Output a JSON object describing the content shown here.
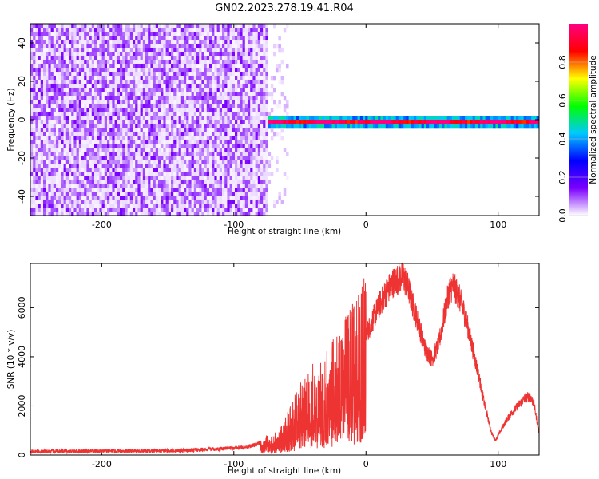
{
  "title": "GN02.2023.278.19.41.R04",
  "chart_data": [
    {
      "type": "heatmap",
      "title": "GN02.2023.278.19.41.R04",
      "xlabel": "Height of straight line (km)",
      "ylabel": "Frequency (Hz)",
      "xlim": [
        -254,
        131
      ],
      "ylim": [
        -50,
        50
      ],
      "x_ticks": [
        -200,
        -100,
        0,
        100
      ],
      "y_ticks": [
        -40,
        -20,
        0,
        20,
        40
      ],
      "colorbar": {
        "label": "Normalized spectral amplitude",
        "range": [
          0,
          1
        ],
        "ticks": [
          0.0,
          0.2,
          0.4,
          0.6,
          0.8
        ],
        "tick_labels": [
          "0.0",
          "0.2",
          "0.4",
          "0.6",
          "0.8"
        ],
        "colormap": [
          "#ffffff",
          "#7b00ff",
          "#0000ff",
          "#00c8ff",
          "#00ff00",
          "#ffff00",
          "#ff0000",
          "#ff0080"
        ]
      },
      "regions": [
        {
          "description": "broadband noise",
          "x_range": [
            -254,
            -76
          ],
          "freq_range": [
            -50,
            50
          ],
          "amplitude": [
            0.0,
            0.15
          ]
        },
        {
          "description": "sparse noise",
          "x_range": [
            -76,
            -60
          ],
          "freq_range": [
            -50,
            50
          ],
          "amplitude": [
            0.0,
            0.05
          ]
        },
        {
          "description": "narrow signal band",
          "x_range": [
            -76,
            131
          ],
          "center_freq": 0,
          "half_width": 2.5,
          "amplitude": [
            0.3,
            1.0
          ]
        }
      ]
    },
    {
      "type": "line",
      "xlabel": "Height of straight line (km)",
      "ylabel": "SNR (10 * v/v)",
      "xlim": [
        -254,
        131
      ],
      "ylim": [
        0,
        7800
      ],
      "x_ticks": [
        -200,
        -100,
        0,
        100
      ],
      "y_ticks": [
        0,
        2000,
        4000,
        6000
      ],
      "color": "#ee3333",
      "series": [
        {
          "x": [
            -254,
            -240,
            -220,
            -200,
            -180,
            -160,
            -140,
            -120,
            -110,
            -100,
            -90,
            -85,
            -80,
            -76,
            -72,
            -68,
            -64,
            -60,
            -56,
            -52,
            -48,
            -44,
            -40,
            -36,
            -32,
            -28,
            -24,
            -20,
            -16,
            -12,
            -8,
            -4,
            0,
            5,
            10,
            15,
            20,
            25,
            28,
            32,
            36,
            40,
            45,
            50,
            55,
            60,
            63,
            66,
            70,
            75,
            80,
            85,
            90,
            95,
            98,
            102,
            106,
            110,
            115,
            120,
            124,
            127,
            131
          ],
          "y": [
            140,
            150,
            150,
            160,
            160,
            170,
            180,
            230,
            250,
            280,
            330,
            400,
            500,
            550,
            550,
            650,
            800,
            1100,
            1500,
            1800,
            2100,
            2300,
            2500,
            2600,
            2800,
            2900,
            3200,
            3400,
            3900,
            4100,
            4400,
            4800,
            4900,
            5500,
            6100,
            6600,
            7000,
            7200,
            7300,
            6800,
            6000,
            5300,
            4300,
            3900,
            4500,
            5900,
            6700,
            6900,
            6500,
            5700,
            4500,
            3300,
            2000,
            900,
            600,
            1000,
            1400,
            1700,
            2000,
            2300,
            2400,
            2100,
            900
          ]
        }
      ]
    }
  ]
}
